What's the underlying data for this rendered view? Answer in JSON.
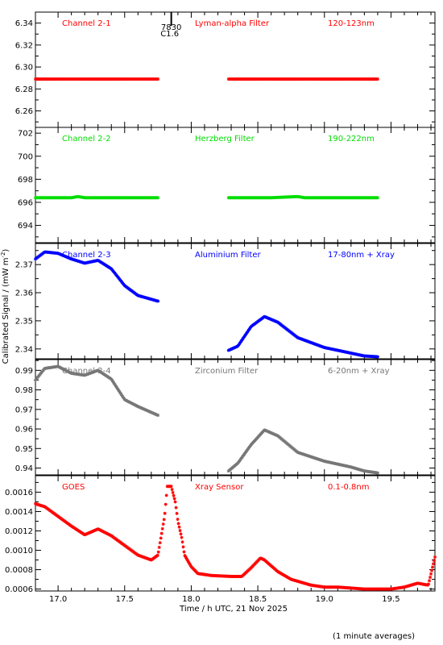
{
  "figure": {
    "ylabel": "Calibrated Signal / (mW m",
    "ylabel_sup": "-2",
    "ylabel_close": ")",
    "footnote": "(1 minute averages)",
    "event_marker": {
      "time": 17.85,
      "label_top": "7830",
      "label_bottom": "C1.6"
    }
  },
  "chart_data": [
    {
      "type": "scatter",
      "channel": "Channel 2-1",
      "filter": "Lyman-alpha Filter",
      "band": "120-123nm",
      "color": "#ff0000",
      "xlim": [
        16.83,
        19.83
      ],
      "ylim": [
        6.245,
        6.35
      ],
      "yticks": [
        6.26,
        6.28,
        6.3,
        6.32,
        6.34
      ],
      "ytick_labels": [
        "6.26",
        "6.28",
        "6.30",
        "6.32",
        "6.34"
      ],
      "segments": [
        {
          "x": [
            16.83,
            17.0,
            17.2,
            17.4,
            17.6,
            17.75
          ],
          "y": [
            6.289,
            6.289,
            6.289,
            6.289,
            6.289,
            6.289
          ]
        },
        {
          "x": [
            18.28,
            18.5,
            18.7,
            18.9,
            19.1,
            19.4
          ],
          "y": [
            6.289,
            6.289,
            6.289,
            6.289,
            6.289,
            6.289
          ]
        }
      ]
    },
    {
      "type": "scatter",
      "channel": "Channel 2-2",
      "filter": "Herzberg Filter",
      "band": "190-222nm",
      "color": "#00dd00",
      "xlim": [
        16.83,
        19.83
      ],
      "ylim": [
        692.5,
        702.5
      ],
      "yticks": [
        694,
        696,
        698,
        700,
        702
      ],
      "ytick_labels": [
        "694",
        "696",
        "698",
        "700",
        "702"
      ],
      "segments": [
        {
          "x": [
            16.83,
            17.1,
            17.15,
            17.2,
            17.5,
            17.75
          ],
          "y": [
            696.4,
            696.4,
            696.5,
            696.4,
            696.4,
            696.4
          ]
        },
        {
          "x": [
            18.28,
            18.6,
            18.8,
            18.85,
            19.1,
            19.4
          ],
          "y": [
            696.4,
            696.4,
            696.5,
            696.4,
            696.4,
            696.4
          ]
        }
      ]
    },
    {
      "type": "scatter",
      "channel": "Channel 2-3",
      "filter": "Aluminium Filter",
      "band": "17-80nm + Xray",
      "color": "#0000ff",
      "xlim": [
        16.83,
        19.83
      ],
      "ylim": [
        2.3365,
        2.3775
      ],
      "yticks": [
        2.34,
        2.35,
        2.36,
        2.37
      ],
      "ytick_labels": [
        "2.34",
        "2.35",
        "2.36",
        "2.37"
      ],
      "segments": [
        {
          "x": [
            16.83,
            16.9,
            17.0,
            17.1,
            17.2,
            17.3,
            17.4,
            17.5,
            17.6,
            17.75
          ],
          "y": [
            2.372,
            2.3745,
            2.374,
            2.372,
            2.3705,
            2.3715,
            2.3685,
            2.3625,
            2.359,
            2.357
          ]
        },
        {
          "x": [
            18.28,
            18.35,
            18.45,
            18.55,
            18.65,
            18.8,
            19.0,
            19.2,
            19.3,
            19.4
          ],
          "y": [
            2.3395,
            2.341,
            2.348,
            2.3515,
            2.3495,
            2.344,
            2.3405,
            2.3385,
            2.3375,
            2.3372
          ]
        }
      ]
    },
    {
      "type": "scatter",
      "channel": "Channel 2-4",
      "filter": "Zirconium Filter",
      "band": "6-20nm + Xray",
      "color": "#777777",
      "xlim": [
        16.83,
        19.83
      ],
      "ylim": [
        0.9365,
        0.9955
      ],
      "yticks": [
        0.94,
        0.95,
        0.96,
        0.97,
        0.98,
        0.99
      ],
      "ytick_labels": [
        "0.94",
        "0.95",
        "0.96",
        "0.97",
        "0.98",
        "0.99"
      ],
      "segments": [
        {
          "x": [
            16.83,
            16.9,
            17.0,
            17.1,
            17.2,
            17.3,
            17.4,
            17.5,
            17.6,
            17.75
          ],
          "y": [
            0.985,
            0.991,
            0.992,
            0.9885,
            0.9875,
            0.99,
            0.9855,
            0.975,
            0.9715,
            0.967
          ]
        },
        {
          "x": [
            18.28,
            18.35,
            18.45,
            18.55,
            18.65,
            18.8,
            19.0,
            19.2,
            19.3,
            19.4
          ],
          "y": [
            0.9385,
            0.9425,
            0.952,
            0.9595,
            0.9565,
            0.948,
            0.9435,
            0.9405,
            0.9385,
            0.9375
          ]
        }
      ]
    },
    {
      "type": "scatter",
      "channel": "GOES",
      "filter": "Xray Sensor",
      "band": "0.1-0.8nm",
      "color": "#ff0000",
      "xlim": [
        16.83,
        19.83
      ],
      "ylim": [
        0.00058,
        0.00177
      ],
      "yticks": [
        0.0006,
        0.0008,
        0.001,
        0.0012,
        0.0014,
        0.0016
      ],
      "ytick_labels": [
        "0.0006",
        "0.0008",
        "0.0010",
        "0.0012",
        "0.0014",
        "0.0016"
      ],
      "xticks": [
        17.0,
        17.5,
        18.0,
        18.5,
        19.0,
        19.5
      ],
      "xtick_labels": [
        "17.0",
        "17.5",
        "18.0",
        "18.5",
        "19.0",
        "19.5"
      ],
      "xlabel": "Time / h UTC, 21 Nov 2025",
      "segments": [
        {
          "x": [
            16.83,
            16.9,
            17.0,
            17.1,
            17.2,
            17.3,
            17.4,
            17.5,
            17.6,
            17.7,
            17.75,
            17.8,
            17.82,
            17.85,
            17.88,
            17.9,
            17.93,
            17.95,
            18.0,
            18.05,
            18.15,
            18.3,
            18.38,
            18.45,
            18.52,
            18.55,
            18.65,
            18.75,
            18.9,
            19.0,
            19.1,
            19.2,
            19.3,
            19.4,
            19.5,
            19.6,
            19.7,
            19.78,
            19.83
          ],
          "y": [
            0.00148,
            0.00145,
            0.00135,
            0.00125,
            0.00116,
            0.00122,
            0.00115,
            0.00105,
            0.00095,
            0.0009,
            0.00095,
            0.00135,
            0.00166,
            0.00166,
            0.0015,
            0.0013,
            0.00112,
            0.00095,
            0.00083,
            0.00076,
            0.00074,
            0.00073,
            0.00073,
            0.00082,
            0.00092,
            0.0009,
            0.00078,
            0.0007,
            0.00064,
            0.00062,
            0.00062,
            0.00061,
            0.0006,
            0.0006,
            0.0006,
            0.00062,
            0.00066,
            0.00064,
            0.00093
          ]
        }
      ]
    }
  ]
}
